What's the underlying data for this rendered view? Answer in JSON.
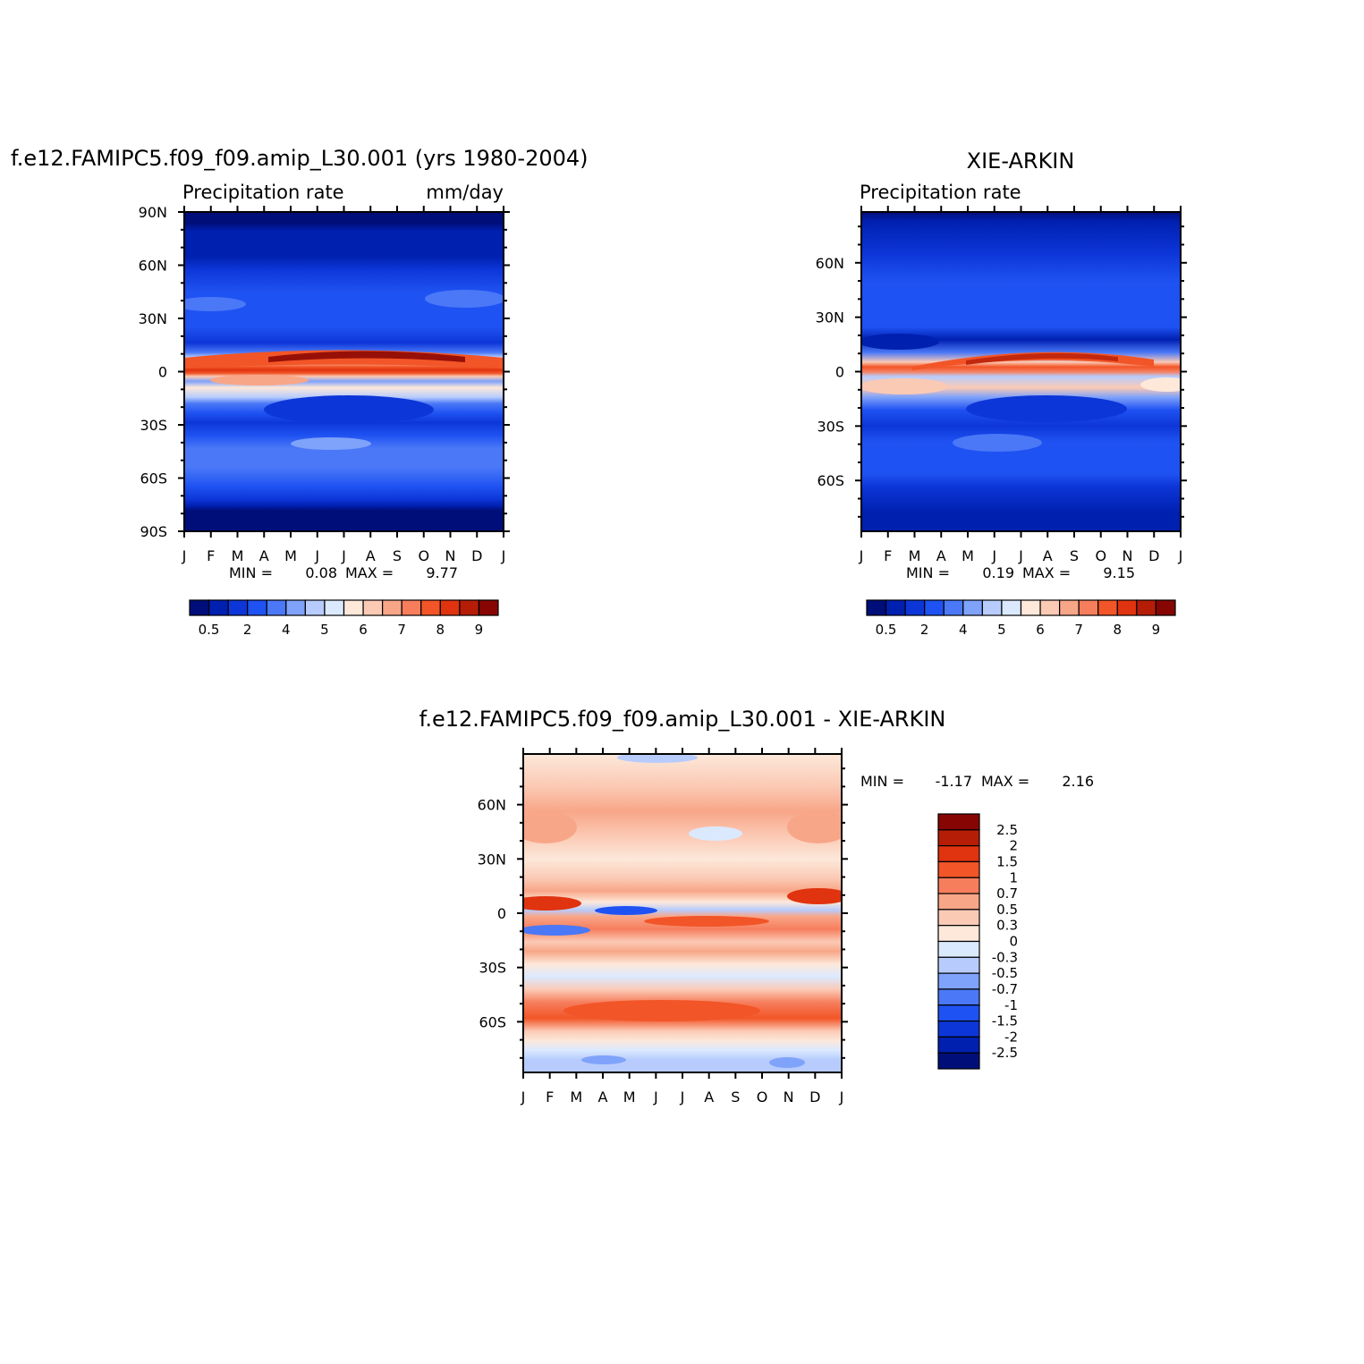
{
  "chart_data": [
    {
      "type": "heatmap",
      "id": "model",
      "title": "f.e12.FAMIPC5.f09_f09.amip_L30.001 (yrs 1980-2004)",
      "subtitle_left": "Precipitation  rate",
      "subtitle_right": "mm/day",
      "x_tick_labels": [
        "J",
        "F",
        "M",
        "A",
        "M",
        "J",
        "J",
        "A",
        "S",
        "O",
        "N",
        "D",
        "J"
      ],
      "y_tick_labels": [
        "90N",
        "60N",
        "30N",
        "0",
        "30S",
        "60S",
        "90S"
      ],
      "y_tick_values": [
        90,
        60,
        30,
        0,
        -30,
        -60,
        -90
      ],
      "ylim": [
        -90,
        90
      ],
      "stats": {
        "min_label": "MIN =",
        "min": "0.08",
        "max_label": "MAX =",
        "max": "9.77"
      },
      "colorbar_levels": [
        "0.5",
        "2",
        "4",
        "5",
        "6",
        "7",
        "8",
        "9"
      ],
      "colorbar_colors": [
        "#000e7a",
        "#0020b0",
        "#0d36d8",
        "#1f52f2",
        "#4a78f7",
        "#7fa2fa",
        "#b7ccfd",
        "#dbe9ff",
        "#fde8da",
        "#fbcab5",
        "#f8a688",
        "#f67e5d",
        "#f25527",
        "#e0330f",
        "#b51d07",
        "#870503"
      ]
    },
    {
      "type": "heatmap",
      "id": "obs",
      "title": "XIE-ARKIN",
      "subtitle_left": "Precipitation  rate",
      "x_tick_labels": [
        "J",
        "F",
        "M",
        "A",
        "M",
        "J",
        "J",
        "A",
        "S",
        "O",
        "N",
        "D",
        "J"
      ],
      "y_tick_labels": [
        "60N",
        "30N",
        "0",
        "30S",
        "60S"
      ],
      "y_tick_values": [
        60,
        30,
        0,
        -30,
        -60
      ],
      "ylim": [
        -88,
        88
      ],
      "stats": {
        "min_label": "MIN =",
        "min": "0.19",
        "max_label": "MAX =",
        "max": "9.15"
      },
      "colorbar_levels": [
        "0.5",
        "2",
        "4",
        "5",
        "6",
        "7",
        "8",
        "9"
      ],
      "colorbar_colors": [
        "#000e7a",
        "#0020b0",
        "#0d36d8",
        "#1f52f2",
        "#4a78f7",
        "#7fa2fa",
        "#b7ccfd",
        "#dbe9ff",
        "#fde8da",
        "#fbcab5",
        "#f8a688",
        "#f67e5d",
        "#f25527",
        "#e0330f",
        "#b51d07",
        "#870503"
      ]
    },
    {
      "type": "heatmap",
      "id": "diff",
      "title": "f.e12.FAMIPC5.f09_f09.amip_L30.001  -  XIE-ARKIN",
      "x_tick_labels": [
        "J",
        "F",
        "M",
        "A",
        "M",
        "J",
        "J",
        "A",
        "S",
        "O",
        "N",
        "D",
        "J"
      ],
      "y_tick_labels": [
        "60N",
        "30N",
        "0",
        "30S",
        "60S"
      ],
      "y_tick_values": [
        60,
        30,
        0,
        -30,
        -60
      ],
      "ylim": [
        -88,
        88
      ],
      "stats": {
        "min_label": "MIN =",
        "min": "-1.17",
        "max_label": "MAX =",
        "max": "2.16"
      },
      "colorbar_levels": [
        "2.5",
        "2",
        "1.5",
        "1",
        "0.7",
        "0.5",
        "0.3",
        "0",
        "-0.3",
        "-0.5",
        "-0.7",
        "-1",
        "-1.5",
        "-2",
        "-2.5"
      ],
      "colorbar_colors": [
        "#870503",
        "#b51d07",
        "#e0330f",
        "#f25527",
        "#f67e5d",
        "#f8a688",
        "#fbcab5",
        "#fde8da",
        "#dbe9ff",
        "#b7ccfd",
        "#7fa2fa",
        "#4a78f7",
        "#1f52f2",
        "#0d36d8",
        "#0020b0",
        "#000e7a"
      ]
    }
  ]
}
